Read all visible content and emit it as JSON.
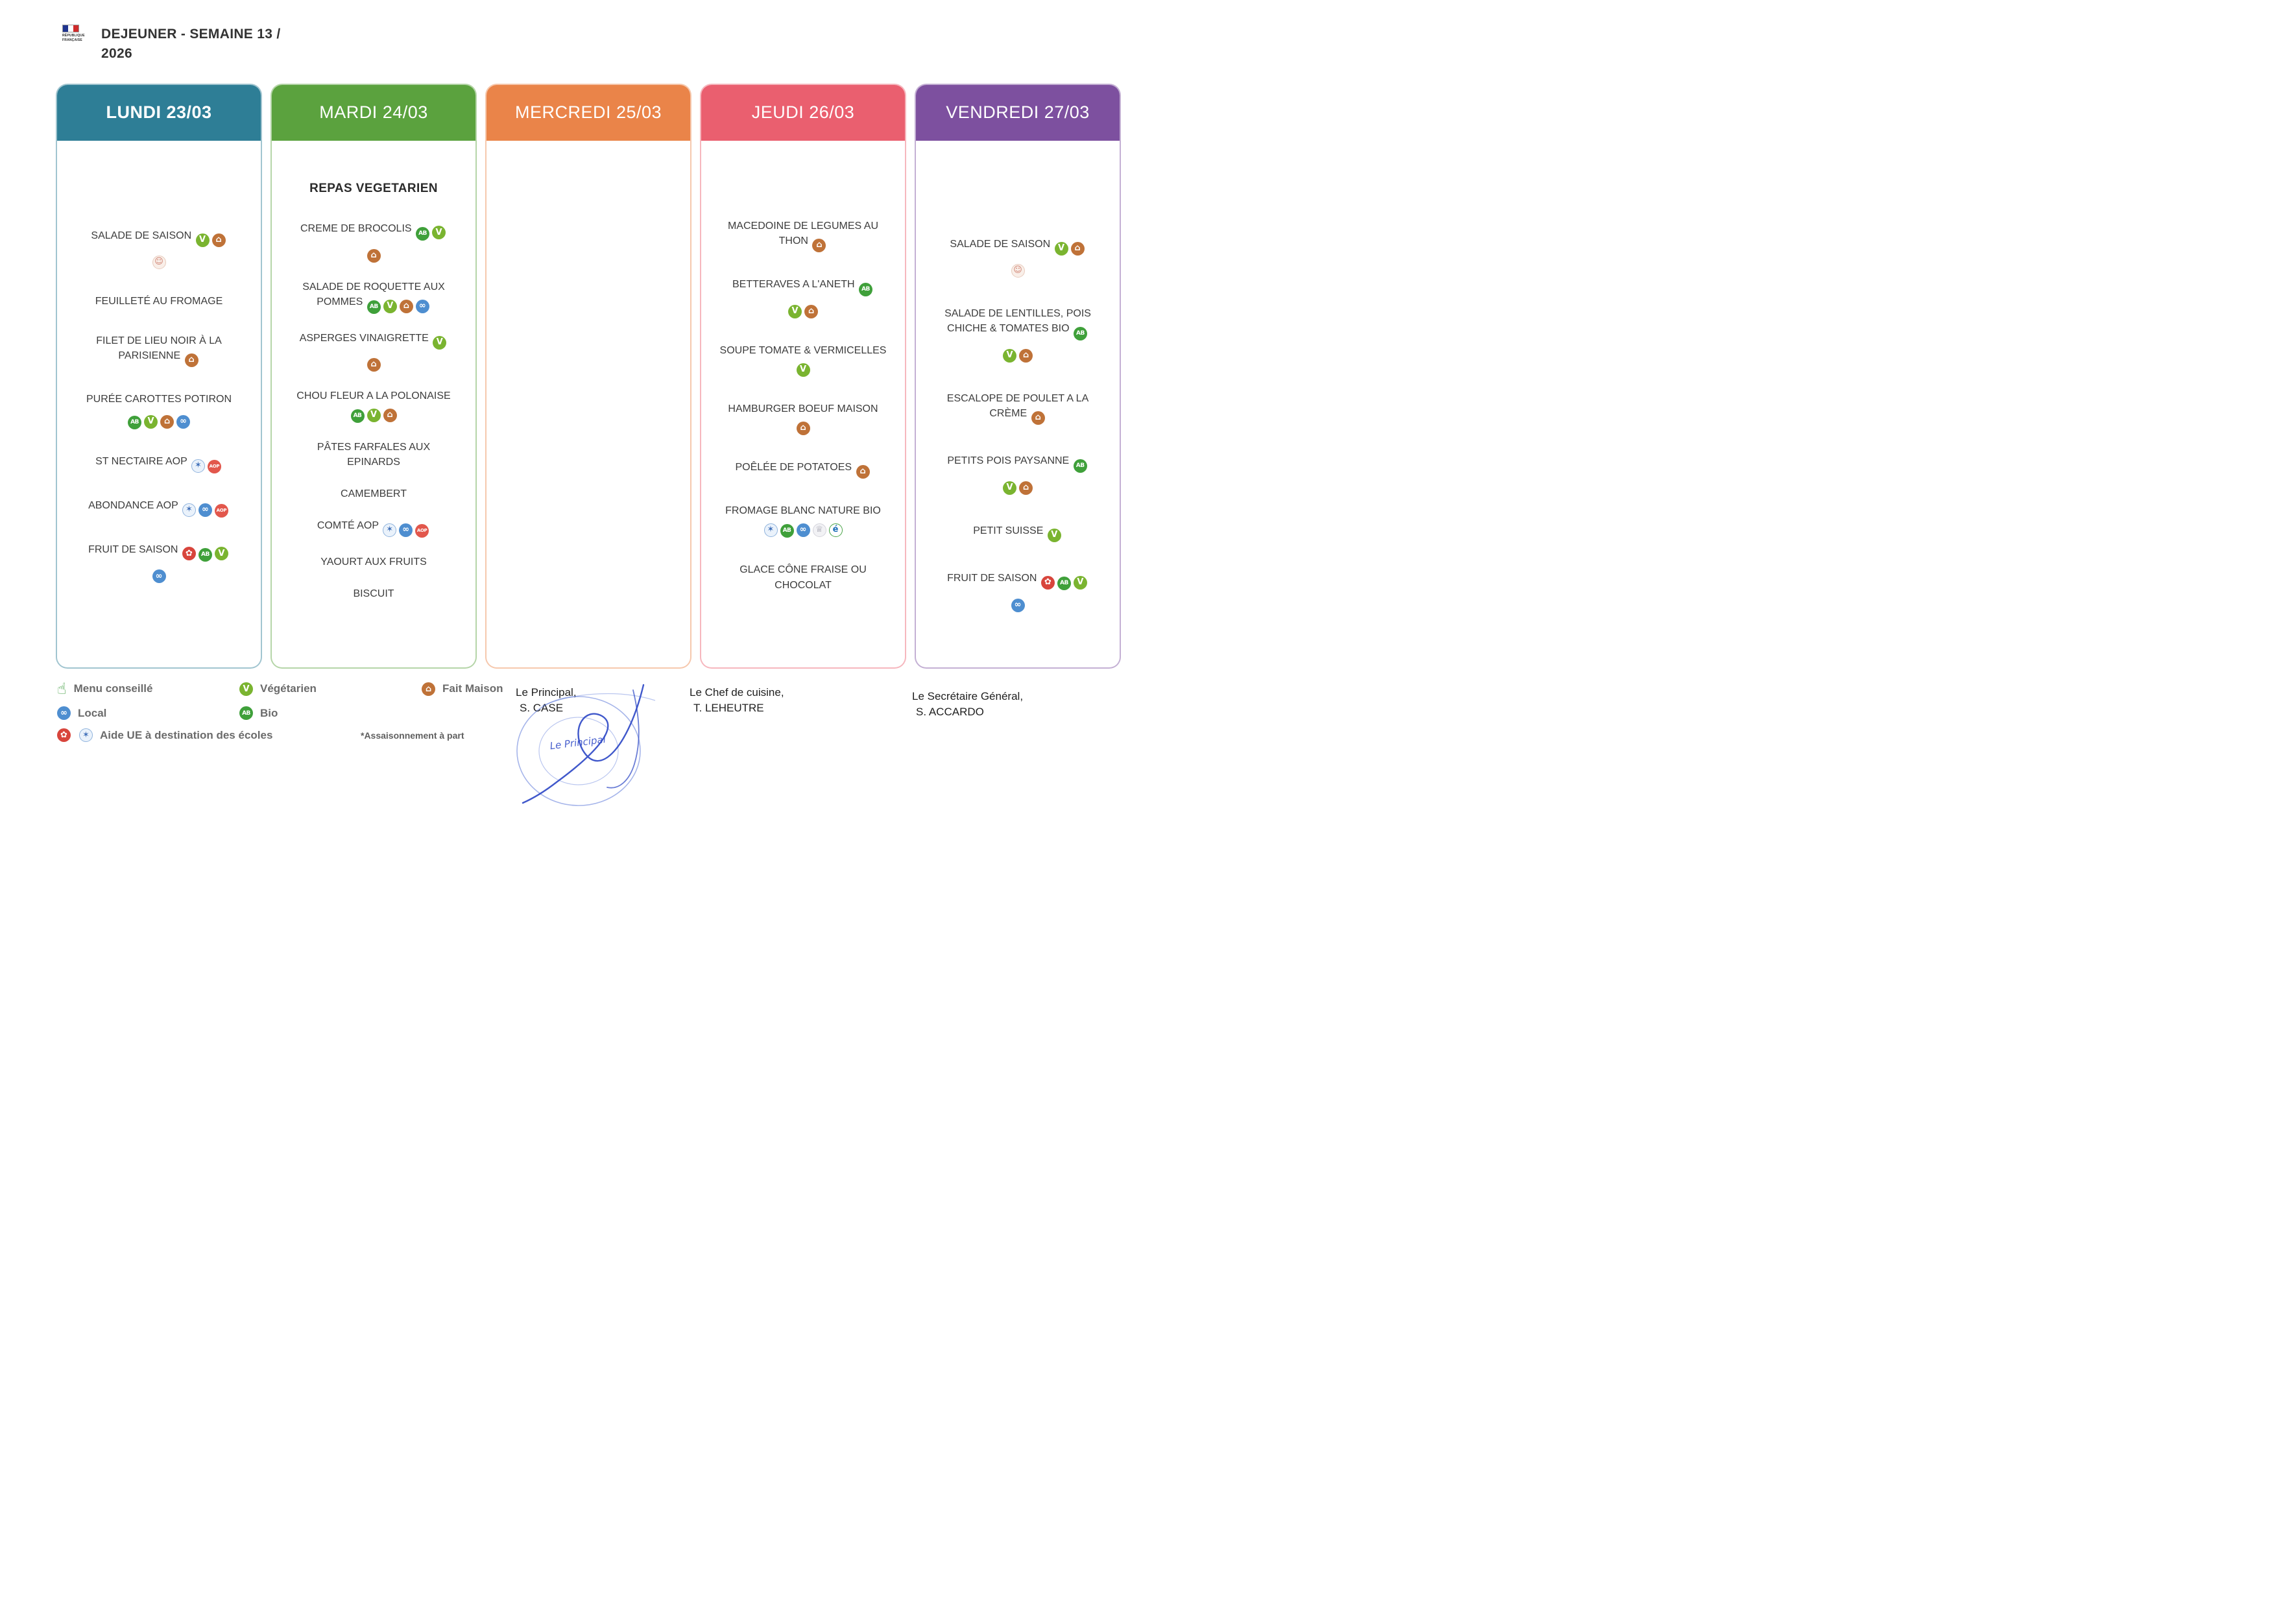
{
  "header": {
    "title_line1": "DEJEUNER - SEMAINE 13 /",
    "title_line2": "2026",
    "logo_text": "RÉPUBLIQUE FRANÇAISE"
  },
  "icons": {
    "vegetarien": {
      "name": "vegetarian-icon",
      "glyph": "V",
      "bg": "#7ab430",
      "fg": "#ffffff"
    },
    "fait-maison": {
      "name": "fait-maison-icon",
      "glyph": "⌂",
      "bg": "#bf7238",
      "fg": "#ffffff"
    },
    "bio": {
      "name": "bio-ab-icon",
      "glyph": "AB",
      "bg": "#3fa03a",
      "fg": "#ffffff",
      "small": true
    },
    "local": {
      "name": "local-handshake-icon",
      "glyph": "∞",
      "bg": "#4e8ed0",
      "fg": "#ffffff"
    },
    "aide-ue": {
      "name": "aide-ue-icon",
      "glyph": "✶",
      "bg": "#eaf2fb",
      "fg": "#3f6fb8",
      "border": "#8fb3dd"
    },
    "aop": {
      "name": "aop-label-icon",
      "glyph": "AOP",
      "bg": "#e2574c",
      "fg": "#ffffff",
      "tiny": true
    },
    "red-fruit": {
      "name": "fruit-icon",
      "glyph": "✿",
      "bg": "#d8453c",
      "fg": "#ffffff"
    },
    "mascot": {
      "name": "seasonal-mascot-icon",
      "glyph": "☺",
      "bg": "#f9efe9",
      "fg": "#cf8070",
      "border": "#e8cbbd"
    },
    "crown": {
      "name": "quality-label-icon",
      "glyph": "♕",
      "bg": "#f2f2f5",
      "fg": "#9a9aa8",
      "border": "#d4d4dc"
    },
    "e-label": {
      "name": "e-label-icon",
      "glyph": "é",
      "bg": "#ffffff",
      "fg": "#1d6fb8",
      "border": "#49a347"
    },
    "thumbs-up": {
      "name": "thumbs-up-icon",
      "glyph": "☝",
      "bg": "transparent",
      "fg": "#3f9d3f",
      "plain": true
    }
  },
  "days": [
    {
      "id": "lundi",
      "label": "LUNDI 23/03",
      "color": "#2e7e96",
      "items": [
        {
          "text": "SALADE DE SAISON",
          "icons": [
            "vegetarien",
            "fait-maison"
          ],
          "sub_icons": [
            "mascot"
          ]
        },
        {
          "text": "FEUILLETÉ AU FROMAGE"
        },
        {
          "text": "FILET DE LIEU NOIR À LA PARISIENNE",
          "icons": [
            "fait-maison"
          ]
        },
        {
          "text": "PURÉE CAROTTES POTIRON",
          "sub_icons": [
            "bio",
            "vegetarien",
            "fait-maison",
            "local"
          ]
        },
        {
          "text": "ST NECTAIRE AOP",
          "icons": [
            "aide-ue",
            "aop"
          ]
        },
        {
          "text": "ABONDANCE AOP",
          "icons": [
            "aide-ue",
            "local",
            "aop"
          ]
        },
        {
          "text": "FRUIT DE SAISON",
          "icons": [
            "red-fruit",
            "bio",
            "vegetarien"
          ],
          "sub_icons": [
            "local"
          ]
        }
      ]
    },
    {
      "id": "mardi",
      "label": "MARDI 24/03",
      "color": "#5ba23e",
      "items": [
        {
          "text": "REPAS VEGETARIEN",
          "bold": true
        },
        {
          "text": "CREME DE BROCOLIS",
          "icons": [
            "bio",
            "vegetarien"
          ],
          "sub_icons": [
            "fait-maison"
          ]
        },
        {
          "text": "SALADE DE ROQUETTE AUX POMMES",
          "icons": [
            "bio",
            "vegetarien",
            "fait-maison",
            "local"
          ]
        },
        {
          "text": "ASPERGES VINAIGRETTE",
          "icons": [
            "vegetarien"
          ],
          "sub_icons": [
            "fait-maison"
          ]
        },
        {
          "text": "CHOU FLEUR A LA POLONAISE",
          "icons": [
            "bio",
            "vegetarien",
            "fait-maison"
          ]
        },
        {
          "text": "PÂTES FARFALES AUX EPINARDS"
        },
        {
          "text": "CAMEMBERT"
        },
        {
          "text": "COMTÉ AOP",
          "icons": [
            "aide-ue",
            "local",
            "aop"
          ]
        },
        {
          "text": "YAOURT AUX FRUITS"
        },
        {
          "text": "BISCUIT"
        }
      ]
    },
    {
      "id": "mercredi",
      "label": "MERCREDI 25/03",
      "color": "#ea8449",
      "items": []
    },
    {
      "id": "jeudi",
      "label": "JEUDI 26/03",
      "color": "#ea5f6f",
      "items": [
        {
          "text": "MACEDOINE DE LEGUMES AU THON",
          "icons": [
            "fait-maison"
          ]
        },
        {
          "text": "BETTERAVES A L'ANETH",
          "icons": [
            "bio"
          ],
          "sub_icons": [
            "vegetarien",
            "fait-maison"
          ]
        },
        {
          "text": "SOUPE TOMATE & VERMICELLES",
          "icons": [
            "vegetarien"
          ]
        },
        {
          "text": "HAMBURGER BOEUF MAISON",
          "icons": [
            "fait-maison"
          ]
        },
        {
          "text": "POÊLÉE DE POTATOES",
          "icons": [
            "fait-maison"
          ]
        },
        {
          "text": "FROMAGE BLANC NATURE BIO",
          "icons": [
            "aide-ue",
            "bio",
            "local",
            "crown",
            "e-label"
          ]
        },
        {
          "text": "GLACE CÔNE FRAISE OU CHOCOLAT"
        }
      ]
    },
    {
      "id": "vendredi",
      "label": "VENDREDI 27/03",
      "color": "#7d509f",
      "items": [
        {
          "text": "SALADE DE SAISON",
          "icons": [
            "vegetarien",
            "fait-maison"
          ],
          "sub_icons": [
            "mascot"
          ]
        },
        {
          "text": "SALADE DE LENTILLES, POIS CHICHE & TOMATES BIO",
          "icons": [
            "bio"
          ],
          "sub_icons": [
            "vegetarien",
            "fait-maison"
          ]
        },
        {
          "text": "ESCALOPE DE POULET A LA CRÈME",
          "icons": [
            "fait-maison"
          ]
        },
        {
          "text": "PETITS POIS PAYSANNE",
          "icons": [
            "bio"
          ],
          "sub_icons": [
            "vegetarien",
            "fait-maison"
          ]
        },
        {
          "text": "PETIT SUISSE",
          "icons": [
            "vegetarien"
          ]
        },
        {
          "text": "FRUIT DE SAISON",
          "icons": [
            "red-fruit",
            "bio",
            "vegetarien"
          ],
          "sub_icons": [
            "local"
          ]
        }
      ]
    }
  ],
  "legend": {
    "rows": [
      [
        {
          "icon": "thumbs-up",
          "label": "Menu conseillé"
        },
        {
          "icon": "vegetarien",
          "label": "Végétarien"
        },
        {
          "icon": "fait-maison",
          "label": "Fait Maison"
        }
      ],
      [
        {
          "icon": "local",
          "label": "Local"
        },
        {
          "icon": "bio",
          "label": "Bio"
        }
      ],
      [
        {
          "icons": [
            "red-fruit",
            "aide-ue"
          ],
          "label": "Aide UE à destination des écoles"
        },
        {
          "label": "*Assaisonnement à part",
          "plain": true
        }
      ]
    ]
  },
  "signatures": [
    {
      "role": "Le Principal,",
      "name": "S. CASE"
    },
    {
      "role": "Le Chef de cuisine,",
      "name": "T. LEHEUTRE"
    },
    {
      "role": "Le Secrétaire Général,",
      "name": "S. ACCARDO"
    }
  ],
  "stamp_text": "Le Principal"
}
